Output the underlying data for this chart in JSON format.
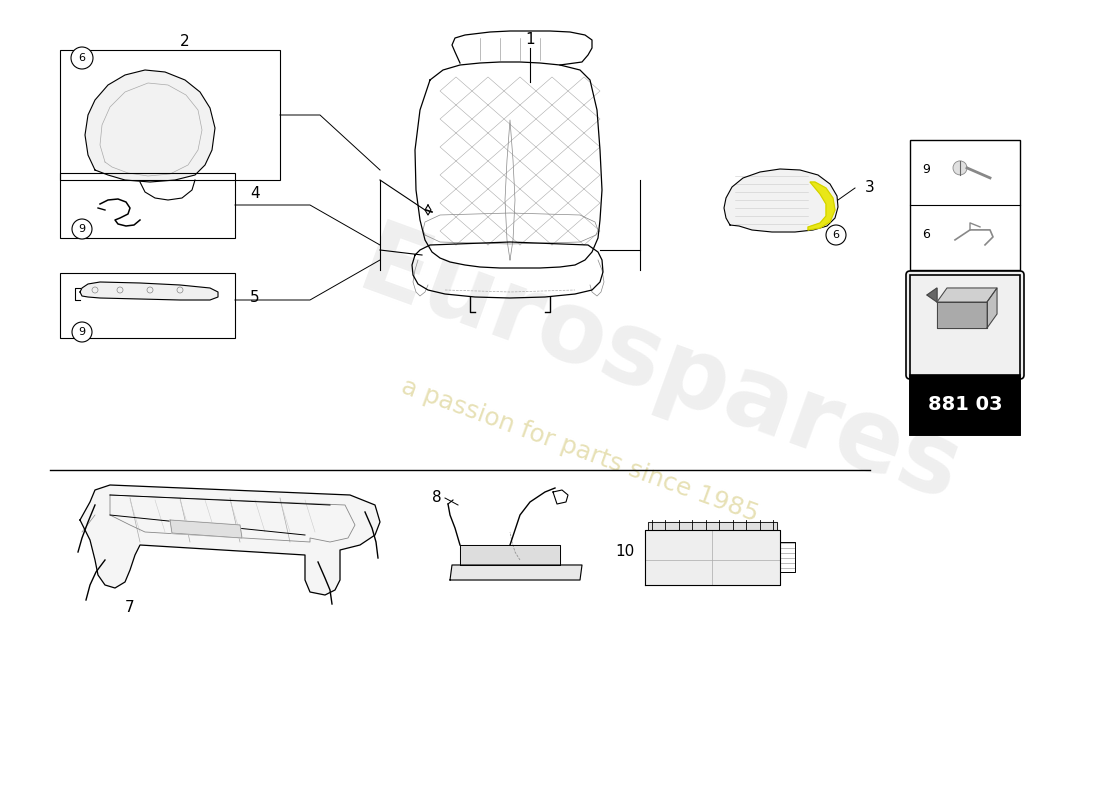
{
  "bg_color": "#ffffff",
  "line_color": "#000000",
  "text_color": "#000000",
  "watermark_text": "Eurospares",
  "watermark_subtext": "a passion for parts since 1985",
  "part_number": "881 03",
  "fig_width": 11.0,
  "fig_height": 8.0,
  "dpi": 100
}
